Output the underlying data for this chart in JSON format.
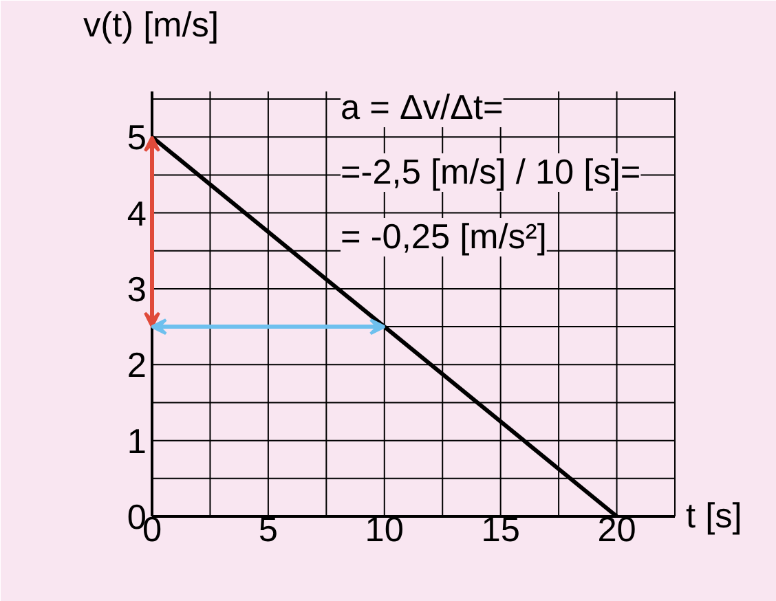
{
  "chart_data": {
    "type": "line",
    "xlabel": "t [s]",
    "ylabel": "v(t) [m/s]",
    "xlim": [
      0,
      22.5
    ],
    "ylim": [
      0,
      5.6
    ],
    "xticks": [
      0,
      {
        "value": 2.5,
        "label": null
      },
      5,
      {
        "value": 7.5,
        "label": null
      },
      10,
      {
        "value": 12.5,
        "label": null
      },
      15,
      {
        "value": 17.5,
        "label": null
      },
      20,
      {
        "value": 22.5,
        "label": null
      }
    ],
    "yticks": [
      0,
      {
        "value": 0.5,
        "label": null
      },
      1,
      {
        "value": 1.5,
        "label": null
      },
      2,
      {
        "value": 2.5,
        "label": null
      },
      3,
      {
        "value": 3.5,
        "label": null
      },
      4,
      {
        "value": 4.5,
        "label": null
      },
      5,
      {
        "value": 5.5,
        "label": null
      }
    ],
    "grid": true,
    "marker": "none",
    "line_style": "solid",
    "series": [
      {
        "color": "#000000",
        "x": [
          0,
          20
        ],
        "values": [
          5,
          0
        ]
      }
    ],
    "annotations": [
      "a = Δv/Δt=",
      "=-2,5 [m/s] / 10 [s]=",
      "= -0,25 [m/s²]"
    ]
  }
}
